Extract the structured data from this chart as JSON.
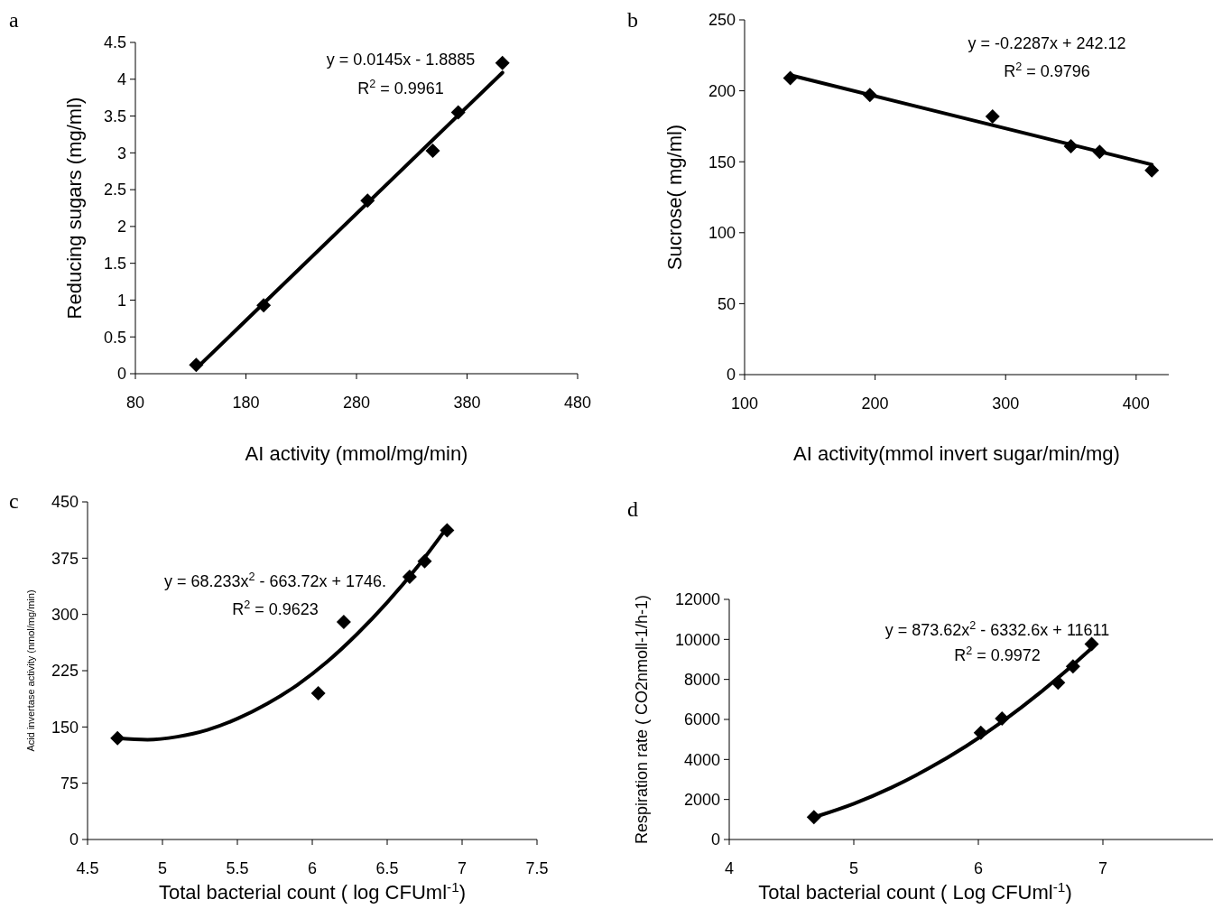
{
  "chart_data": [
    {
      "type": "scatter",
      "title": "a",
      "xlabel": "AI activity (mmol/mg/min)",
      "ylabel": "Reducing sugars (mg/ml)",
      "xlim": [
        80,
        480
      ],
      "xticks": [
        80,
        180,
        280,
        380,
        480
      ],
      "ylim": [
        0,
        4.5
      ],
      "yticks": [
        0,
        0.5,
        1,
        1.5,
        2,
        2.5,
        3,
        3.5,
        4,
        4.5
      ],
      "grid": false,
      "marker": "diamond",
      "annotations": [
        "y = 0.0145x - 1.8885",
        "R$^{2}$ = 0.9961"
      ],
      "series": [
        {
          "color": "#000000",
          "x": [
            135,
            196,
            290,
            349,
            372,
            412
          ],
          "values": [
            0.12,
            0.93,
            2.35,
            3.03,
            3.55,
            4.22
          ]
        },
        {
          "type": "line",
          "color": "#000000",
          "marker": "none",
          "x": [
            135,
            412
          ],
          "values": [
            0.07,
            4.09
          ]
        }
      ]
    },
    {
      "type": "scatter",
      "title": "b",
      "xlabel": "AI activity(mmol invert sugar/min/mg)",
      "ylabel": "Sucrose( mg/ml)",
      "xlim": [
        100,
        425
      ],
      "xticks": [
        100,
        200,
        300,
        400
      ],
      "ylim": [
        0,
        250
      ],
      "yticks": [
        0,
        50,
        100,
        150,
        200,
        250
      ],
      "grid": false,
      "marker": "diamond",
      "annotations": [
        "y = -0.2287x + 242.12",
        "R$^{2}$ = 0.9796"
      ],
      "series": [
        {
          "color": "#000000",
          "x": [
            135,
            196,
            290,
            350,
            372,
            412
          ],
          "values": [
            209,
            197,
            182,
            161,
            157,
            144
          ]
        },
        {
          "type": "line",
          "color": "#000000",
          "marker": "none",
          "x": [
            135,
            412
          ],
          "values": [
            211,
            148
          ]
        }
      ]
    },
    {
      "type": "scatter",
      "title": "c",
      "xlabel": "Total bacterial count ( log CFUml$^{-1}$)",
      "ylabel": "Acid invertase activity (nmol/mg/min)",
      "xlim": [
        4.5,
        7.5
      ],
      "xticks": [
        4.5,
        5,
        5.5,
        6,
        6.5,
        7,
        7.5
      ],
      "ylim": [
        0,
        450
      ],
      "yticks": [
        0,
        75,
        150,
        225,
        300,
        375,
        450
      ],
      "grid": false,
      "marker": "diamond",
      "annotations": [
        "y = 68.233x$^{2}$ - 663.72x + 1746.",
        "R$^{2}$ = 0.9623"
      ],
      "series": [
        {
          "color": "#000000",
          "x": [
            4.7,
            6.04,
            6.21,
            6.65,
            6.75,
            6.9
          ],
          "values": [
            135,
            195,
            290,
            350,
            371,
            412
          ]
        },
        {
          "type": "line",
          "color": "#000000",
          "marker": "none",
          "x": [
            4.7,
            4.9,
            5.1,
            5.3,
            5.5,
            5.7,
            5.9,
            6.1,
            6.3,
            6.5,
            6.7,
            6.9
          ],
          "values": [
            135,
            133,
            137,
            146,
            161,
            181,
            206,
            237,
            274,
            316,
            363,
            416
          ]
        }
      ]
    },
    {
      "type": "scatter",
      "title": "d",
      "xlabel": "Total bacterial count ( Log CFUml$^{-1}$)",
      "ylabel": "Respiration rate ( CO2nmoll-1/h-1)",
      "xlim": [
        4,
        8
      ],
      "xticks": [
        4,
        5,
        6,
        7
      ],
      "ylim": [
        0,
        12000
      ],
      "yticks": [
        0,
        2000,
        4000,
        6000,
        8000,
        10000,
        12000
      ],
      "grid": false,
      "marker": "diamond",
      "annotations": [
        "y = 873.62x$^{2}$ - 6332.6x + 11611",
        "R$^{2}$ = 0.9972"
      ],
      "series": [
        {
          "color": "#000000",
          "x": [
            4.68,
            6.02,
            6.19,
            6.64,
            6.76,
            6.91
          ],
          "values": [
            1120,
            5340,
            6040,
            7840,
            8650,
            9770
          ]
        },
        {
          "type": "line",
          "color": "#000000",
          "marker": "none",
          "x": [
            4.7,
            5.0,
            5.3,
            5.6,
            5.9,
            6.2,
            6.5,
            6.7,
            6.9
          ],
          "values": [
            1150,
            1790,
            2590,
            3550,
            4660,
            5930,
            7360,
            8400,
            9510
          ]
        }
      ]
    }
  ]
}
